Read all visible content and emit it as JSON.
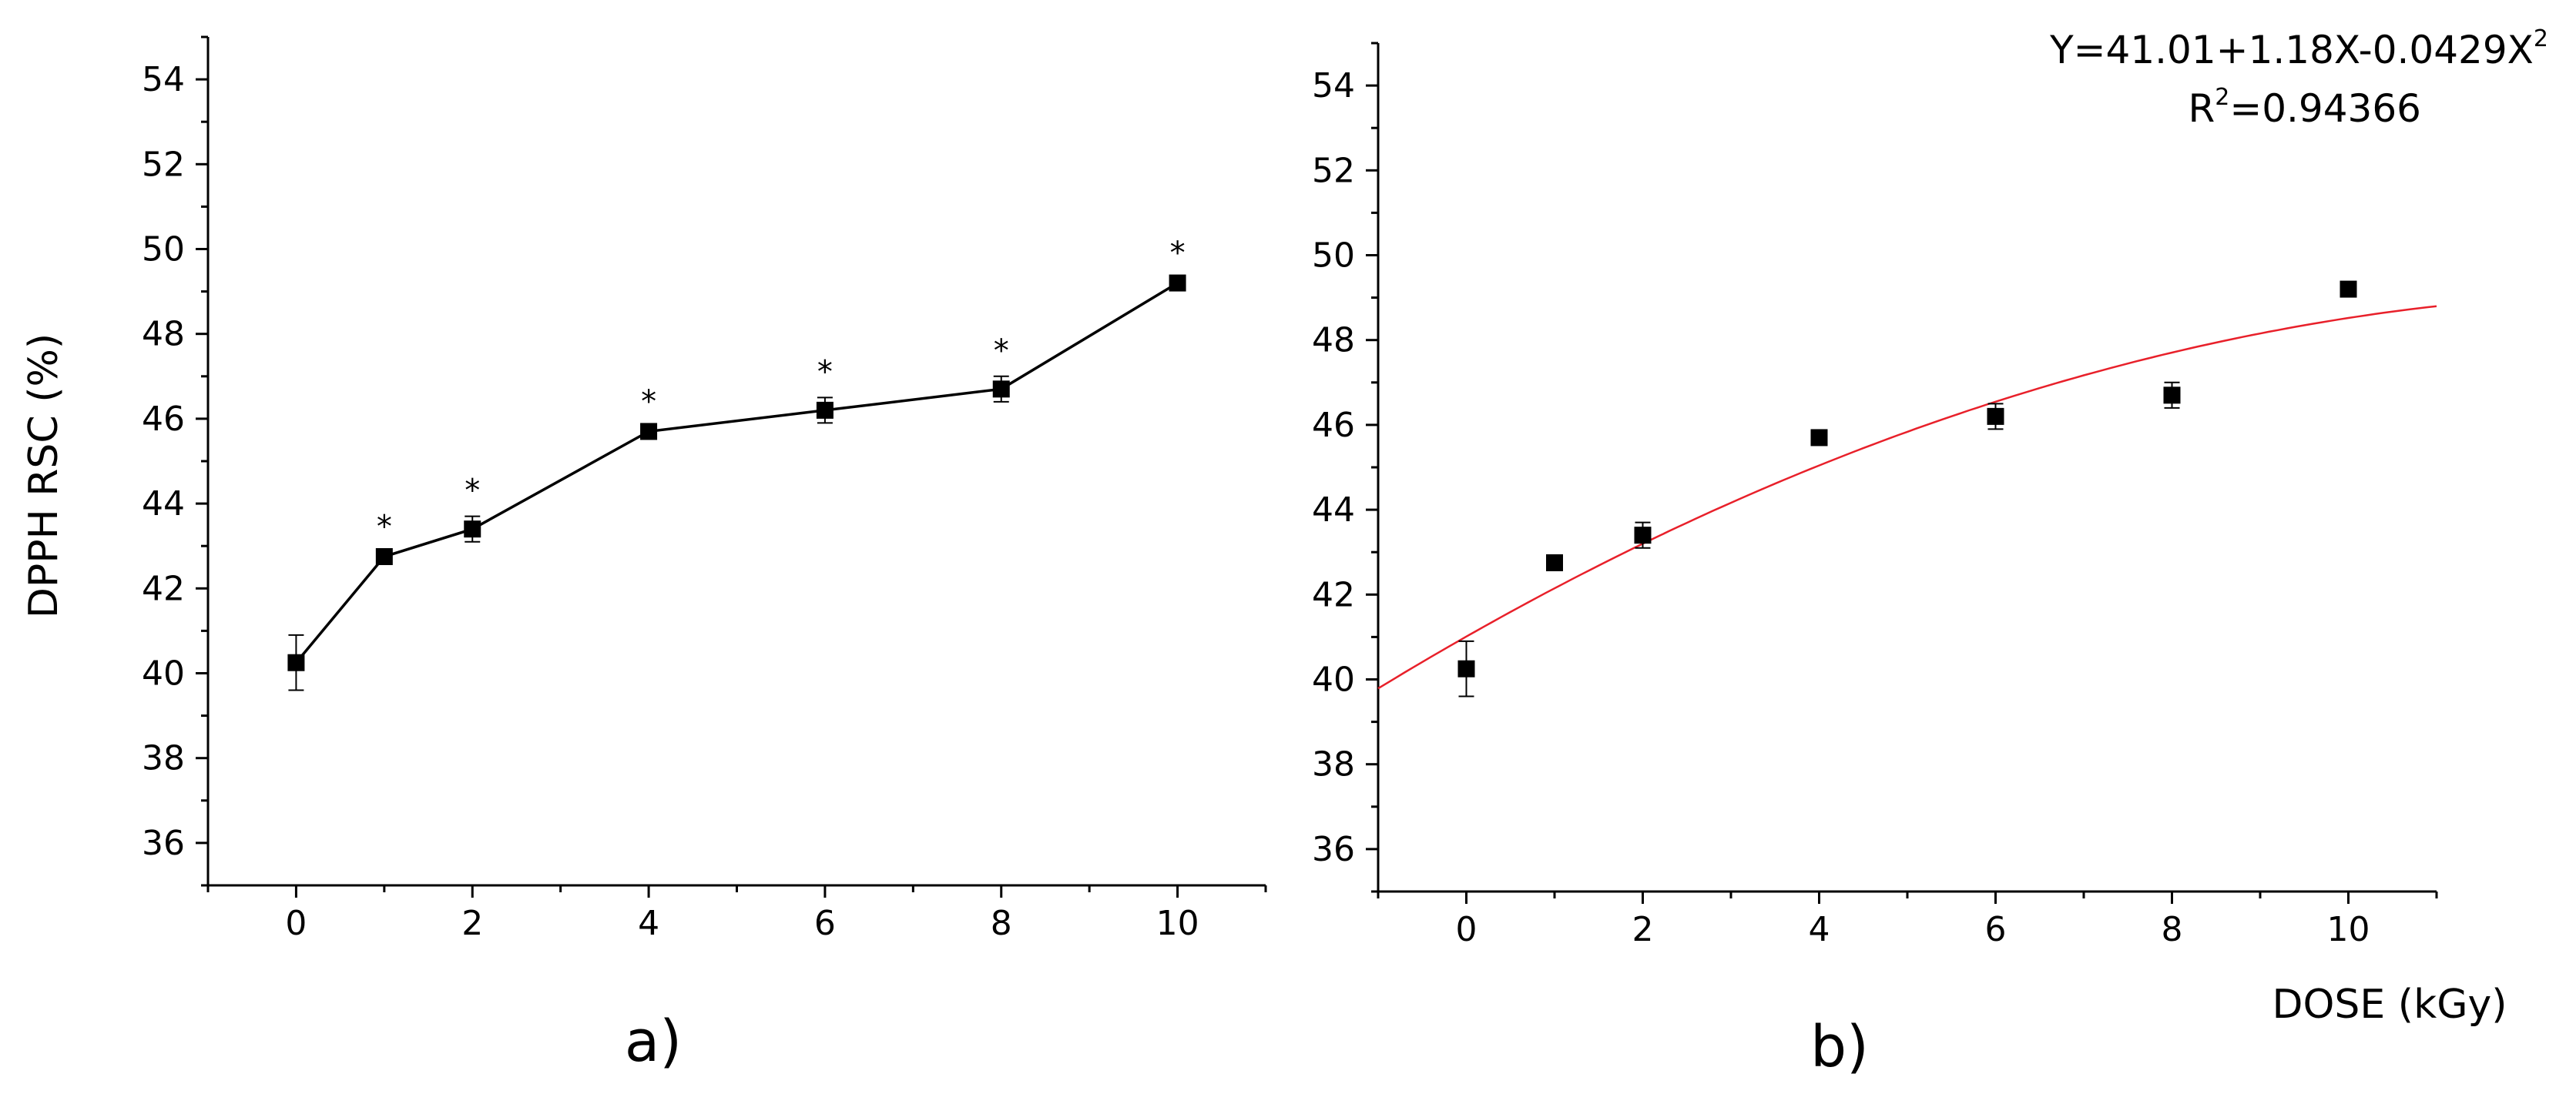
{
  "chart_data": [
    {
      "panel": "a)",
      "type": "line",
      "xlabel": "",
      "ylabel": "DPPH RSC (%)",
      "xlim": [
        -1,
        11
      ],
      "ylim": [
        35,
        55
      ],
      "x_ticks": [
        "0",
        "2",
        "4",
        "6",
        "8",
        "10"
      ],
      "y_ticks": [
        "36",
        "38",
        "40",
        "42",
        "44",
        "46",
        "48",
        "50",
        "52",
        "54"
      ],
      "series": [
        {
          "x": [
            0,
            1,
            2,
            4,
            6,
            8,
            10
          ],
          "y": [
            40.25,
            42.75,
            43.4,
            45.7,
            46.2,
            46.7,
            49.2
          ],
          "error": [
            0.65,
            0.1,
            0.3,
            0.1,
            0.3,
            0.3,
            0.1
          ],
          "significance": [
            "",
            "*",
            "*",
            "*",
            "*",
            "*",
            "*"
          ]
        }
      ],
      "marker": "square",
      "line_color": "#000000"
    },
    {
      "panel": "b)",
      "type": "scatter",
      "xlabel": "DOSE (kGy)",
      "ylabel": "",
      "xlim": [
        -1,
        11
      ],
      "ylim": [
        35,
        55
      ],
      "x_ticks": [
        "0",
        "2",
        "4",
        "6",
        "8",
        "10"
      ],
      "y_ticks": [
        "36",
        "38",
        "40",
        "42",
        "44",
        "46",
        "48",
        "50",
        "52",
        "54"
      ],
      "series": [
        {
          "x": [
            0,
            1,
            2,
            4,
            6,
            8,
            10
          ],
          "y": [
            40.25,
            42.75,
            43.4,
            45.7,
            46.2,
            46.7,
            49.2
          ],
          "error": [
            0.65,
            0.1,
            0.3,
            0.1,
            0.3,
            0.3,
            0.1
          ]
        }
      ],
      "marker": "square",
      "fit": {
        "type": "quadratic",
        "coefficients": [
          41.01,
          1.18,
          -0.0429
        ],
        "color": "#e8202a",
        "equation_text": "Y=41.01+1.18X-0.0429X",
        "equation_superscript": "2",
        "r2_prefix": "R",
        "r2_superscript": "2",
        "r2_text": "=0.94366"
      }
    }
  ]
}
